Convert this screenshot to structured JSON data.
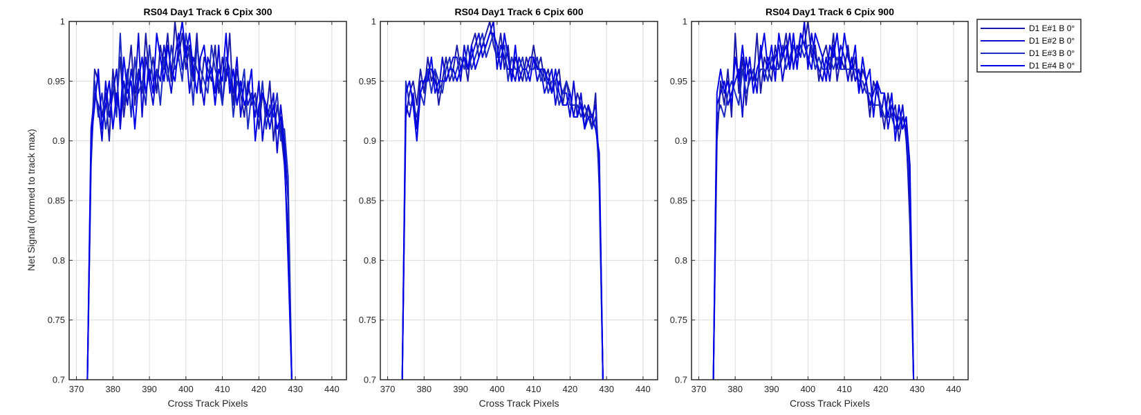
{
  "figure": {
    "ylabel": "Net Signal (normed to track max)"
  },
  "colors": {
    "series": [
      "#1a1aa6",
      "#0a0ad0",
      "#1b2bc2",
      "#0000e6"
    ],
    "axes": "#262626",
    "grid": "#dcdcdc"
  },
  "legend": {
    "placement": "outside-right",
    "entries": [
      "D1 E#1 B 0°",
      "D1 E#2 B 0°",
      "D1 E#3 B 0°",
      "D1 E#4 B 0°"
    ]
  },
  "chart_data": [
    {
      "type": "line",
      "title": "RS04 Day1 Track 6  Cpix 300",
      "xlabel": "Cross Track Pixels",
      "ylabel": "Net Signal (normed to track max)",
      "xlim": [
        368,
        444
      ],
      "ylim": [
        0.7,
        1
      ],
      "xticks": [
        "370",
        "380",
        "390",
        "400",
        "410",
        "420",
        "430",
        "440"
      ],
      "yticks": [
        "0.7",
        "0.75",
        "0.8",
        "0.85",
        "0.9",
        "0.95",
        "1"
      ],
      "grid": true,
      "x": [
        373,
        374,
        375,
        376,
        377,
        378,
        379,
        380,
        381,
        382,
        383,
        384,
        385,
        386,
        387,
        388,
        389,
        390,
        391,
        392,
        393,
        394,
        395,
        396,
        397,
        398,
        399,
        400,
        401,
        402,
        403,
        404,
        405,
        406,
        407,
        408,
        409,
        410,
        411,
        412,
        413,
        414,
        415,
        416,
        417,
        418,
        419,
        420,
        421,
        422,
        423,
        424,
        425,
        426,
        427,
        428,
        429
      ],
      "series": [
        {
          "name": "D1 E#1 B 0°",
          "values": [
            0.7,
            0.89,
            0.96,
            0.95,
            0.92,
            0.94,
            0.9,
            0.96,
            0.93,
            0.97,
            0.92,
            0.95,
            0.98,
            0.93,
            0.96,
            0.94,
            0.99,
            0.95,
            0.97,
            0.94,
            0.98,
            0.96,
            0.99,
            0.95,
            1.0,
            0.97,
            0.99,
            0.96,
            0.98,
            0.95,
            0.99,
            0.94,
            0.97,
            0.96,
            0.95,
            0.98,
            0.94,
            0.97,
            0.95,
            0.99,
            0.93,
            0.96,
            0.94,
            0.92,
            0.95,
            0.93,
            0.94,
            0.91,
            0.94,
            0.92,
            0.95,
            0.9,
            0.93,
            0.91,
            0.88,
            0.82,
            0.7
          ]
        },
        {
          "name": "D1 E#2 B 0°",
          "values": [
            0.7,
            0.91,
            0.94,
            0.93,
            0.9,
            0.95,
            0.92,
            0.94,
            0.96,
            0.91,
            0.95,
            0.93,
            0.96,
            0.94,
            0.99,
            0.92,
            0.97,
            0.95,
            0.93,
            0.96,
            0.95,
            0.98,
            0.96,
            0.94,
            0.97,
            0.99,
            0.96,
            0.98,
            0.94,
            0.97,
            0.96,
            0.95,
            0.93,
            0.97,
            0.96,
            0.94,
            0.98,
            0.93,
            0.96,
            0.95,
            0.94,
            0.97,
            0.92,
            0.95,
            0.93,
            0.94,
            0.92,
            0.95,
            0.9,
            0.93,
            0.92,
            0.94,
            0.89,
            0.93,
            0.9,
            0.85,
            0.7
          ]
        },
        {
          "name": "D1 E#3 B 0°",
          "values": [
            0.7,
            0.88,
            0.95,
            0.92,
            0.94,
            0.91,
            0.93,
            0.95,
            0.92,
            0.99,
            0.93,
            0.96,
            0.92,
            0.97,
            0.94,
            0.95,
            0.93,
            0.98,
            0.95,
            0.96,
            0.93,
            0.97,
            0.95,
            0.98,
            0.96,
            0.97,
            0.95,
            0.99,
            0.97,
            0.93,
            0.98,
            0.96,
            0.95,
            0.94,
            0.98,
            0.96,
            0.95,
            0.93,
            0.97,
            0.96,
            0.92,
            0.95,
            0.94,
            0.96,
            0.91,
            0.94,
            0.93,
            0.92,
            0.95,
            0.91,
            0.93,
            0.92,
            0.94,
            0.9,
            0.91,
            0.87,
            0.7
          ]
        },
        {
          "name": "D1 E#4 B 0°",
          "values": [
            0.7,
            0.9,
            0.93,
            0.96,
            0.91,
            0.93,
            0.95,
            0.91,
            0.94,
            0.92,
            0.97,
            0.94,
            0.95,
            0.91,
            0.95,
            0.97,
            0.94,
            0.96,
            0.94,
            0.99,
            0.97,
            0.95,
            0.98,
            0.96,
            0.95,
            0.98,
            1.0,
            0.97,
            0.99,
            0.96,
            0.94,
            0.97,
            0.98,
            0.95,
            0.96,
            0.93,
            0.96,
            0.95,
            0.99,
            0.94,
            0.96,
            0.93,
            0.95,
            0.93,
            0.94,
            0.96,
            0.9,
            0.93,
            0.94,
            0.93,
            0.91,
            0.93,
            0.91,
            0.92,
            0.89,
            0.8,
            0.7
          ]
        }
      ]
    },
    {
      "type": "line",
      "title": "RS04 Day1 Track 6  Cpix 600",
      "xlabel": "Cross Track Pixels",
      "ylabel": "",
      "xlim": [
        368,
        444
      ],
      "ylim": [
        0.7,
        1
      ],
      "xticks": [
        "370",
        "380",
        "390",
        "400",
        "410",
        "420",
        "430",
        "440"
      ],
      "yticks": [
        "0.7",
        "0.75",
        "0.8",
        "0.85",
        "0.9",
        "0.95",
        "1"
      ],
      "grid": true,
      "x": [
        374,
        375,
        376,
        377,
        378,
        379,
        380,
        381,
        382,
        383,
        384,
        385,
        386,
        387,
        388,
        389,
        390,
        391,
        392,
        393,
        394,
        395,
        396,
        397,
        398,
        399,
        400,
        401,
        402,
        403,
        404,
        405,
        406,
        407,
        408,
        409,
        410,
        411,
        412,
        413,
        414,
        415,
        416,
        417,
        418,
        419,
        420,
        421,
        422,
        423,
        424,
        425,
        426,
        427,
        428,
        429
      ],
      "series": [
        {
          "name": "D1 E#1 B 0°",
          "values": [
            0.7,
            0.92,
            0.94,
            0.95,
            0.93,
            0.96,
            0.94,
            0.97,
            0.95,
            0.96,
            0.93,
            0.95,
            0.97,
            0.95,
            0.96,
            0.98,
            0.96,
            0.97,
            0.95,
            0.98,
            0.99,
            0.97,
            0.98,
            0.99,
            1.0,
            0.98,
            0.97,
            0.99,
            0.96,
            0.98,
            0.95,
            0.97,
            0.96,
            0.95,
            0.97,
            0.96,
            0.98,
            0.96,
            0.97,
            0.95,
            0.96,
            0.94,
            0.95,
            0.96,
            0.93,
            0.95,
            0.94,
            0.92,
            0.94,
            0.93,
            0.92,
            0.93,
            0.91,
            0.94,
            0.86,
            0.7
          ]
        },
        {
          "name": "D1 E#2 B 0°",
          "values": [
            0.7,
            0.93,
            0.92,
            0.94,
            0.91,
            0.95,
            0.95,
            0.96,
            0.96,
            0.95,
            0.94,
            0.97,
            0.95,
            0.96,
            0.97,
            0.97,
            0.95,
            0.98,
            0.96,
            0.97,
            0.98,
            0.99,
            0.97,
            0.98,
            0.99,
            1.0,
            0.96,
            0.98,
            0.97,
            0.96,
            0.96,
            0.95,
            0.97,
            0.96,
            0.96,
            0.97,
            0.97,
            0.95,
            0.96,
            0.94,
            0.95,
            0.96,
            0.93,
            0.95,
            0.94,
            0.94,
            0.92,
            0.95,
            0.92,
            0.94,
            0.91,
            0.93,
            0.92,
            0.93,
            0.88,
            0.7
          ]
        },
        {
          "name": "D1 E#3 B 0°",
          "values": [
            0.7,
            0.95,
            0.93,
            0.93,
            0.92,
            0.94,
            0.93,
            0.96,
            0.94,
            0.96,
            0.95,
            0.94,
            0.96,
            0.97,
            0.95,
            0.96,
            0.97,
            0.96,
            0.98,
            0.96,
            0.97,
            0.98,
            0.99,
            0.97,
            0.98,
            0.99,
            0.97,
            0.97,
            0.98,
            0.95,
            0.97,
            0.96,
            0.96,
            0.97,
            0.95,
            0.96,
            0.96,
            0.97,
            0.95,
            0.96,
            0.94,
            0.95,
            0.95,
            0.93,
            0.94,
            0.95,
            0.93,
            0.93,
            0.93,
            0.92,
            0.93,
            0.92,
            0.91,
            0.92,
            0.87,
            0.7
          ]
        },
        {
          "name": "D1 E#4 B 0°",
          "values": [
            0.7,
            0.94,
            0.95,
            0.93,
            0.9,
            0.94,
            0.95,
            0.95,
            0.97,
            0.94,
            0.95,
            0.95,
            0.95,
            0.96,
            0.96,
            0.95,
            0.96,
            0.97,
            0.96,
            0.98,
            0.96,
            0.97,
            0.98,
            0.98,
            0.99,
            0.99,
            0.98,
            0.96,
            0.99,
            0.97,
            0.95,
            0.98,
            0.95,
            0.96,
            0.96,
            0.95,
            0.97,
            0.96,
            0.96,
            0.96,
            0.95,
            0.94,
            0.96,
            0.94,
            0.93,
            0.93,
            0.94,
            0.92,
            0.92,
            0.93,
            0.91,
            0.92,
            0.92,
            0.91,
            0.89,
            0.7
          ]
        }
      ]
    },
    {
      "type": "line",
      "title": "RS04 Day1 Track 6  Cpix 900",
      "xlabel": "Cross Track Pixels",
      "ylabel": "",
      "xlim": [
        368,
        444
      ],
      "ylim": [
        0.7,
        1
      ],
      "xticks": [
        "370",
        "380",
        "390",
        "400",
        "410",
        "420",
        "430",
        "440"
      ],
      "yticks": [
        "0.7",
        "0.75",
        "0.8",
        "0.85",
        "0.9",
        "0.95",
        "1"
      ],
      "grid": true,
      "x": [
        374,
        375,
        376,
        377,
        378,
        379,
        380,
        381,
        382,
        383,
        384,
        385,
        386,
        387,
        388,
        389,
        390,
        391,
        392,
        393,
        394,
        395,
        396,
        397,
        398,
        399,
        400,
        401,
        402,
        403,
        404,
        405,
        406,
        407,
        408,
        409,
        410,
        411,
        412,
        413,
        414,
        415,
        416,
        417,
        418,
        419,
        420,
        421,
        422,
        423,
        424,
        425,
        426,
        427,
        428,
        429
      ],
      "series": [
        {
          "name": "D1 E#1 B 0°",
          "values": [
            0.7,
            0.9,
            0.95,
            0.93,
            0.96,
            0.92,
            0.99,
            0.94,
            0.97,
            0.93,
            0.96,
            0.95,
            0.99,
            0.94,
            0.97,
            0.96,
            0.95,
            0.98,
            0.96,
            0.97,
            0.99,
            0.96,
            0.98,
            0.97,
            0.99,
            0.98,
            1.0,
            0.97,
            0.98,
            0.95,
            0.97,
            0.98,
            0.96,
            0.99,
            0.95,
            0.97,
            0.96,
            0.98,
            0.95,
            0.97,
            0.94,
            0.96,
            0.95,
            0.92,
            0.95,
            0.94,
            0.93,
            0.91,
            0.94,
            0.92,
            0.93,
            0.9,
            0.92,
            0.91,
            0.83,
            0.7
          ]
        },
        {
          "name": "D1 E#2 B 0°",
          "values": [
            0.7,
            0.93,
            0.94,
            0.95,
            0.93,
            0.94,
            0.95,
            0.96,
            0.92,
            0.97,
            0.95,
            0.96,
            0.94,
            0.98,
            0.95,
            0.97,
            0.96,
            0.97,
            0.98,
            0.95,
            0.97,
            0.99,
            0.96,
            0.98,
            0.97,
            1.0,
            0.96,
            0.99,
            0.97,
            0.96,
            0.95,
            0.97,
            0.95,
            0.98,
            0.96,
            0.98,
            0.97,
            0.95,
            0.97,
            0.95,
            0.96,
            0.94,
            0.95,
            0.93,
            0.94,
            0.95,
            0.92,
            0.94,
            0.91,
            0.93,
            0.92,
            0.91,
            0.93,
            0.9,
            0.85,
            0.7
          ]
        },
        {
          "name": "D1 E#3 B 0°",
          "values": [
            0.7,
            0.92,
            0.93,
            0.92,
            0.94,
            0.95,
            0.94,
            0.93,
            0.96,
            0.94,
            0.95,
            0.96,
            0.95,
            0.96,
            0.96,
            0.95,
            0.97,
            0.96,
            0.96,
            0.98,
            0.96,
            0.97,
            0.98,
            0.97,
            0.98,
            0.97,
            0.98,
            0.98,
            0.96,
            0.97,
            0.96,
            0.96,
            0.97,
            0.96,
            0.97,
            0.96,
            0.96,
            0.96,
            0.96,
            0.96,
            0.95,
            0.95,
            0.94,
            0.94,
            0.93,
            0.93,
            0.93,
            0.92,
            0.92,
            0.92,
            0.91,
            0.92,
            0.91,
            0.92,
            0.86,
            0.7
          ]
        },
        {
          "name": "D1 E#4 B 0°",
          "values": [
            0.7,
            0.94,
            0.96,
            0.94,
            0.95,
            0.93,
            0.97,
            0.95,
            0.98,
            0.95,
            0.97,
            0.94,
            0.96,
            0.97,
            0.99,
            0.96,
            0.98,
            0.95,
            0.99,
            0.97,
            0.98,
            0.96,
            0.99,
            0.96,
            0.99,
            0.98,
            0.97,
            0.96,
            0.99,
            0.98,
            0.97,
            0.95,
            0.98,
            0.97,
            0.99,
            0.96,
            0.99,
            0.97,
            0.96,
            0.98,
            0.94,
            0.97,
            0.95,
            0.96,
            0.92,
            0.95,
            0.94,
            0.94,
            0.92,
            0.94,
            0.9,
            0.93,
            0.91,
            0.92,
            0.88,
            0.7
          ]
        }
      ]
    }
  ]
}
